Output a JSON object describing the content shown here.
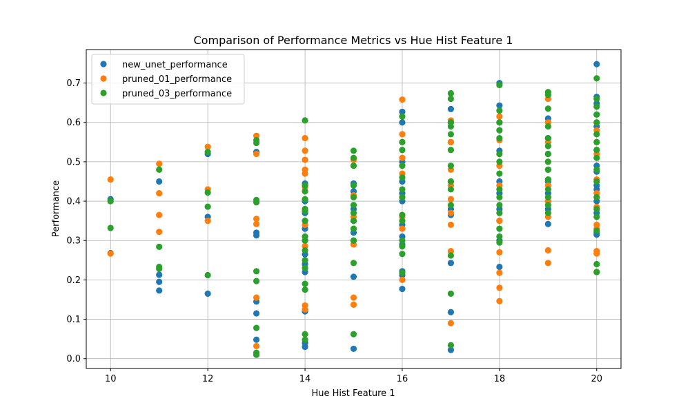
{
  "chart_data": {
    "type": "scatter",
    "title": "Comparison of Performance Metrics vs Hue Hist Feature 1",
    "xlabel": "Hue Hist Feature 1",
    "ylabel": "Performance",
    "xlim": [
      9.5,
      20.5
    ],
    "ylim": [
      -0.025,
      0.785
    ],
    "xticks": [
      10,
      12,
      14,
      16,
      18,
      20
    ],
    "yticks": [
      0.0,
      0.1,
      0.2,
      0.3,
      0.4,
      0.5,
      0.6,
      0.7
    ],
    "xtick_labels": [
      "10",
      "12",
      "14",
      "16",
      "18",
      "20"
    ],
    "ytick_labels": [
      "0.0",
      "0.1",
      "0.2",
      "0.3",
      "0.4",
      "0.5",
      "0.6",
      "0.7"
    ],
    "grid": true,
    "legend_position": "top-left",
    "series": [
      {
        "name": "new_unet_performance",
        "color": "#1f77b4",
        "points": [
          [
            10,
            0.405
          ],
          [
            10,
            0.268
          ],
          [
            11,
            0.45
          ],
          [
            11,
            0.213
          ],
          [
            11,
            0.195
          ],
          [
            11,
            0.173
          ],
          [
            12,
            0.52
          ],
          [
            12,
            0.36
          ],
          [
            12,
            0.165
          ],
          [
            13,
            0.525
          ],
          [
            13,
            0.32
          ],
          [
            13,
            0.313
          ],
          [
            13,
            0.145
          ],
          [
            13,
            0.115
          ],
          [
            13,
            0.048
          ],
          [
            13,
            0.01
          ],
          [
            14,
            0.445
          ],
          [
            14,
            0.4
          ],
          [
            14,
            0.37
          ],
          [
            14,
            0.33
          ],
          [
            14,
            0.3
          ],
          [
            14,
            0.265
          ],
          [
            14,
            0.24
          ],
          [
            14,
            0.22
          ],
          [
            14,
            0.12
          ],
          [
            14,
            0.04
          ],
          [
            14,
            0.03
          ],
          [
            15,
            0.445
          ],
          [
            15,
            0.425
          ],
          [
            15,
            0.38
          ],
          [
            15,
            0.35
          ],
          [
            15,
            0.32
          ],
          [
            15,
            0.3
          ],
          [
            15,
            0.208
          ],
          [
            15,
            0.025
          ],
          [
            16,
            0.627
          ],
          [
            16,
            0.6
          ],
          [
            16,
            0.5
          ],
          [
            16,
            0.45
          ],
          [
            16,
            0.42
          ],
          [
            16,
            0.4
          ],
          [
            16,
            0.34
          ],
          [
            16,
            0.31
          ],
          [
            16,
            0.29
          ],
          [
            16,
            0.222
          ],
          [
            16,
            0.212
          ],
          [
            16,
            0.177
          ],
          [
            17,
            0.634
          ],
          [
            17,
            0.6
          ],
          [
            17,
            0.55
          ],
          [
            17,
            0.45
          ],
          [
            17,
            0.38
          ],
          [
            17,
            0.365
          ],
          [
            17,
            0.243
          ],
          [
            17,
            0.118
          ],
          [
            17,
            0.022
          ],
          [
            18,
            0.7
          ],
          [
            18,
            0.643
          ],
          [
            18,
            0.6
          ],
          [
            18,
            0.528
          ],
          [
            18,
            0.45
          ],
          [
            18,
            0.42
          ],
          [
            18,
            0.38
          ],
          [
            18,
            0.35
          ],
          [
            18,
            0.3
          ],
          [
            18,
            0.233
          ],
          [
            19,
            0.61
          ],
          [
            19,
            0.56
          ],
          [
            19,
            0.52
          ],
          [
            19,
            0.48
          ],
          [
            19,
            0.45
          ],
          [
            19,
            0.42
          ],
          [
            19,
            0.4
          ],
          [
            19,
            0.38
          ],
          [
            19,
            0.342
          ],
          [
            20,
            0.748
          ],
          [
            20,
            0.665
          ],
          [
            20,
            0.648
          ],
          [
            20,
            0.62
          ],
          [
            20,
            0.59
          ],
          [
            20,
            0.53
          ],
          [
            20,
            0.49
          ],
          [
            20,
            0.475
          ],
          [
            20,
            0.44
          ],
          [
            20,
            0.43
          ],
          [
            20,
            0.4
          ],
          [
            20,
            0.37
          ],
          [
            20,
            0.32
          ],
          [
            20,
            0.315
          ],
          [
            20,
            0.22
          ]
        ]
      },
      {
        "name": "pruned_01_performance",
        "color": "#ff7f0e",
        "points": [
          [
            10,
            0.455
          ],
          [
            10,
            0.267
          ],
          [
            11,
            0.495
          ],
          [
            11,
            0.42
          ],
          [
            11,
            0.365
          ],
          [
            11,
            0.322
          ],
          [
            12,
            0.538
          ],
          [
            12,
            0.43
          ],
          [
            12,
            0.35
          ],
          [
            13,
            0.566
          ],
          [
            13,
            0.52
          ],
          [
            13,
            0.355
          ],
          [
            13,
            0.342
          ],
          [
            13,
            0.155
          ],
          [
            13,
            0.032
          ],
          [
            14,
            0.56
          ],
          [
            14,
            0.528
          ],
          [
            14,
            0.505
          ],
          [
            14,
            0.48
          ],
          [
            14,
            0.47
          ],
          [
            14,
            0.435
          ],
          [
            14,
            0.35
          ],
          [
            14,
            0.34
          ],
          [
            14,
            0.286
          ],
          [
            14,
            0.135
          ],
          [
            14,
            0.125
          ],
          [
            15,
            0.505
          ],
          [
            15,
            0.415
          ],
          [
            15,
            0.36
          ],
          [
            15,
            0.33
          ],
          [
            15,
            0.29
          ],
          [
            15,
            0.155
          ],
          [
            15,
            0.137
          ],
          [
            16,
            0.658
          ],
          [
            16,
            0.57
          ],
          [
            16,
            0.55
          ],
          [
            16,
            0.51
          ],
          [
            16,
            0.47
          ],
          [
            16,
            0.41
          ],
          [
            16,
            0.36
          ],
          [
            16,
            0.33
          ],
          [
            16,
            0.2
          ],
          [
            17,
            0.605
          ],
          [
            17,
            0.55
          ],
          [
            17,
            0.48
          ],
          [
            17,
            0.44
          ],
          [
            17,
            0.405
          ],
          [
            17,
            0.37
          ],
          [
            17,
            0.34
          ],
          [
            17,
            0.273
          ],
          [
            17,
            0.09
          ],
          [
            18,
            0.615
          ],
          [
            18,
            0.555
          ],
          [
            18,
            0.49
          ],
          [
            18,
            0.44
          ],
          [
            18,
            0.35
          ],
          [
            18,
            0.27
          ],
          [
            18,
            0.218
          ],
          [
            18,
            0.18
          ],
          [
            18,
            0.146
          ],
          [
            19,
            0.66
          ],
          [
            19,
            0.6
          ],
          [
            19,
            0.55
          ],
          [
            19,
            0.5
          ],
          [
            19,
            0.44
          ],
          [
            19,
            0.4
          ],
          [
            19,
            0.36
          ],
          [
            19,
            0.275
          ],
          [
            19,
            0.243
          ],
          [
            20,
            0.6
          ],
          [
            20,
            0.58
          ],
          [
            20,
            0.55
          ],
          [
            20,
            0.52
          ],
          [
            20,
            0.455
          ],
          [
            20,
            0.42
          ],
          [
            20,
            0.385
          ],
          [
            20,
            0.34
          ],
          [
            20,
            0.33
          ],
          [
            20,
            0.273
          ],
          [
            20,
            0.267
          ],
          [
            20,
            0.22
          ]
        ]
      },
      {
        "name": "pruned_03_performance",
        "color": "#2ca02c",
        "points": [
          [
            10,
            0.4
          ],
          [
            10,
            0.332
          ],
          [
            11,
            0.48
          ],
          [
            11,
            0.284
          ],
          [
            11,
            0.233
          ],
          [
            11,
            0.228
          ],
          [
            12,
            0.525
          ],
          [
            12,
            0.422
          ],
          [
            12,
            0.386
          ],
          [
            12,
            0.212
          ],
          [
            13,
            0.555
          ],
          [
            13,
            0.548
          ],
          [
            13,
            0.403
          ],
          [
            13,
            0.397
          ],
          [
            13,
            0.222
          ],
          [
            13,
            0.197
          ],
          [
            13,
            0.078
          ],
          [
            13,
            0.015
          ],
          [
            13,
            0.01
          ],
          [
            14,
            0.605
          ],
          [
            14,
            0.44
          ],
          [
            14,
            0.425
          ],
          [
            14,
            0.405
          ],
          [
            14,
            0.38
          ],
          [
            14,
            0.375
          ],
          [
            14,
            0.35
          ],
          [
            14,
            0.31
          ],
          [
            14,
            0.3
          ],
          [
            14,
            0.275
          ],
          [
            14,
            0.25
          ],
          [
            14,
            0.23
          ],
          [
            14,
            0.19
          ],
          [
            14,
            0.175
          ],
          [
            14,
            0.062
          ],
          [
            14,
            0.048
          ],
          [
            15,
            0.528
          ],
          [
            15,
            0.51
          ],
          [
            15,
            0.49
          ],
          [
            15,
            0.44
          ],
          [
            15,
            0.41
          ],
          [
            15,
            0.39
          ],
          [
            15,
            0.37
          ],
          [
            15,
            0.35
          ],
          [
            15,
            0.33
          ],
          [
            15,
            0.3
          ],
          [
            15,
            0.243
          ],
          [
            15,
            0.062
          ],
          [
            16,
            0.615
          ],
          [
            16,
            0.55
          ],
          [
            16,
            0.53
          ],
          [
            16,
            0.49
          ],
          [
            16,
            0.46
          ],
          [
            16,
            0.43
          ],
          [
            16,
            0.41
          ],
          [
            16,
            0.365
          ],
          [
            16,
            0.35
          ],
          [
            16,
            0.3
          ],
          [
            16,
            0.285
          ],
          [
            16,
            0.266
          ],
          [
            16,
            0.218
          ],
          [
            17,
            0.674
          ],
          [
            17,
            0.66
          ],
          [
            17,
            0.6
          ],
          [
            17,
            0.59
          ],
          [
            17,
            0.57
          ],
          [
            17,
            0.53
          ],
          [
            17,
            0.49
          ],
          [
            17,
            0.45
          ],
          [
            17,
            0.43
          ],
          [
            17,
            0.39
          ],
          [
            17,
            0.262
          ],
          [
            17,
            0.165
          ],
          [
            17,
            0.034
          ],
          [
            18,
            0.695
          ],
          [
            18,
            0.63
          ],
          [
            18,
            0.6
          ],
          [
            18,
            0.58
          ],
          [
            18,
            0.56
          ],
          [
            18,
            0.52
          ],
          [
            18,
            0.5
          ],
          [
            18,
            0.47
          ],
          [
            18,
            0.43
          ],
          [
            18,
            0.41
          ],
          [
            18,
            0.39
          ],
          [
            18,
            0.37
          ],
          [
            18,
            0.33
          ],
          [
            18,
            0.31
          ],
          [
            18,
            0.295
          ],
          [
            19,
            0.677
          ],
          [
            19,
            0.67
          ],
          [
            19,
            0.635
          ],
          [
            19,
            0.59
          ],
          [
            19,
            0.56
          ],
          [
            19,
            0.54
          ],
          [
            19,
            0.52
          ],
          [
            19,
            0.5
          ],
          [
            19,
            0.48
          ],
          [
            19,
            0.455
          ],
          [
            19,
            0.43
          ],
          [
            19,
            0.41
          ],
          [
            19,
            0.39
          ],
          [
            19,
            0.37
          ],
          [
            20,
            0.712
          ],
          [
            20,
            0.66
          ],
          [
            20,
            0.64
          ],
          [
            20,
            0.62
          ],
          [
            20,
            0.6
          ],
          [
            20,
            0.57
          ],
          [
            20,
            0.55
          ],
          [
            20,
            0.53
          ],
          [
            20,
            0.51
          ],
          [
            20,
            0.48
          ],
          [
            20,
            0.45
          ],
          [
            20,
            0.41
          ],
          [
            20,
            0.38
          ],
          [
            20,
            0.36
          ],
          [
            20,
            0.325
          ],
          [
            20,
            0.24
          ],
          [
            20,
            0.22
          ]
        ]
      }
    ]
  }
}
